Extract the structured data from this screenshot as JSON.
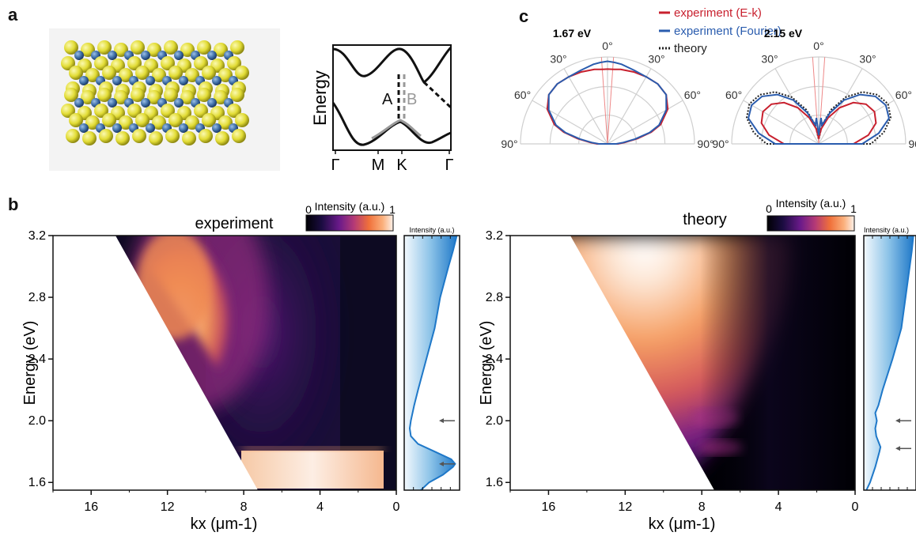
{
  "panel_labels": {
    "a": "a",
    "b": "b",
    "c": "c"
  },
  "colors": {
    "exp_ek": "#c8202e",
    "exp_fourier": "#2a5cae",
    "theory": "#222222",
    "sulfur": "#e6e23c",
    "metal": "#3f6fa8",
    "side_fill_light": "#eaf4fb",
    "side_fill_dark": "#1f78c8"
  },
  "band": {
    "ylabel": "Energy",
    "ticks": [
      "Γ",
      "M",
      "K",
      "Γ"
    ],
    "label_A": "A",
    "label_B": "B"
  },
  "polar": {
    "legend": [
      "experiment (E-k)",
      "experiment (Fourier)",
      "theory"
    ],
    "plots": [
      {
        "title": "1.67 eV",
        "show_theory": false,
        "ek": [
          [
            0,
            0.86
          ],
          [
            5,
            0.86
          ],
          [
            10,
            0.87
          ],
          [
            20,
            0.88
          ],
          [
            30,
            0.89
          ],
          [
            40,
            0.9
          ],
          [
            50,
            0.88
          ],
          [
            60,
            0.8
          ],
          [
            70,
            0.65
          ],
          [
            75,
            0.52
          ],
          [
            80,
            0.35
          ],
          [
            85,
            0.2
          ],
          [
            90,
            0.12
          ]
        ],
        "fourier": [
          [
            0,
            0.95
          ],
          [
            5,
            0.94
          ],
          [
            10,
            0.93
          ],
          [
            20,
            0.9
          ],
          [
            30,
            0.89
          ],
          [
            40,
            0.9
          ],
          [
            50,
            0.88
          ],
          [
            60,
            0.78
          ],
          [
            70,
            0.63
          ],
          [
            75,
            0.5
          ],
          [
            80,
            0.32
          ],
          [
            85,
            0.18
          ],
          [
            90,
            0.1
          ]
        ]
      },
      {
        "title": "2.15 eV",
        "show_theory": true,
        "ek": [
          [
            0,
            0.06
          ],
          [
            5,
            0.1
          ],
          [
            10,
            0.18
          ],
          [
            20,
            0.32
          ],
          [
            30,
            0.48
          ],
          [
            40,
            0.62
          ],
          [
            50,
            0.71
          ],
          [
            60,
            0.74
          ],
          [
            70,
            0.7
          ],
          [
            80,
            0.58
          ],
          [
            90,
            0.4
          ]
        ],
        "fourier": [
          [
            0,
            0.1
          ],
          [
            5,
            0.3
          ],
          [
            10,
            0.22
          ],
          [
            20,
            0.38
          ],
          [
            30,
            0.58
          ],
          [
            40,
            0.74
          ],
          [
            50,
            0.85
          ],
          [
            60,
            0.89
          ],
          [
            70,
            0.86
          ],
          [
            80,
            0.7
          ],
          [
            90,
            0.5
          ]
        ],
        "theory": [
          [
            0,
            0.05
          ],
          [
            10,
            0.22
          ],
          [
            20,
            0.42
          ],
          [
            30,
            0.62
          ],
          [
            40,
            0.78
          ],
          [
            50,
            0.88
          ],
          [
            60,
            0.92
          ],
          [
            70,
            0.88
          ],
          [
            80,
            0.76
          ],
          [
            90,
            0.6
          ]
        ]
      }
    ],
    "angle_ticks": [
      "0°",
      "30°",
      "30°",
      "60°",
      "60°",
      "90°",
      "90°"
    ]
  },
  "chart_data": [
    {
      "type": "heatmap",
      "title": "experiment",
      "xlabel": "kx (μm-1)",
      "ylabel": "Energy (eV)",
      "xlim": [
        18,
        0
      ],
      "ylim": [
        1.55,
        3.2
      ],
      "x_ticks": [
        "16",
        "12",
        "8",
        "4",
        "0"
      ],
      "y_ticks": [
        "1.6",
        "2.0",
        "2.4",
        "2.8",
        "3.2"
      ],
      "colorbar": {
        "label": "Intensity (a.u.)",
        "min_label": "0",
        "max_label": "1"
      },
      "side_profile": {
        "label": "Intensity (a.u.)",
        "energy": [
          1.55,
          1.6,
          1.65,
          1.7,
          1.72,
          1.75,
          1.8,
          1.85,
          1.9,
          1.95,
          2.0,
          2.1,
          2.2,
          2.4,
          2.6,
          2.8,
          3.0,
          3.1,
          3.2
        ],
        "intensity": [
          0.3,
          0.45,
          0.7,
          0.88,
          0.92,
          0.85,
          0.55,
          0.25,
          0.12,
          0.1,
          0.12,
          0.18,
          0.25,
          0.4,
          0.55,
          0.65,
          0.8,
          0.88,
          0.95
        ],
        "arrow_energies": [
          2.0,
          1.72
        ]
      }
    },
    {
      "type": "heatmap",
      "title": "theory",
      "xlabel": "kx (μm-1)",
      "ylabel": "Energy (eV)",
      "xlim": [
        18,
        0
      ],
      "ylim": [
        1.55,
        3.2
      ],
      "x_ticks": [
        "16",
        "12",
        "8",
        "4",
        "0"
      ],
      "y_ticks": [
        "1.6",
        "2.0",
        "2.4",
        "2.8",
        "3.2"
      ],
      "colorbar": {
        "label": "Intensity (a.u.)",
        "min_label": "0",
        "max_label": "1"
      },
      "side_profile": {
        "label": "Intensity (a.u.)",
        "energy": [
          1.55,
          1.6,
          1.7,
          1.8,
          1.83,
          1.9,
          1.95,
          2.0,
          2.05,
          2.1,
          2.2,
          2.4,
          2.6,
          2.8,
          3.0,
          3.1,
          3.2
        ],
        "intensity": [
          0.05,
          0.12,
          0.22,
          0.3,
          0.32,
          0.24,
          0.22,
          0.25,
          0.22,
          0.28,
          0.36,
          0.55,
          0.72,
          0.8,
          0.88,
          0.92,
          0.95
        ],
        "arrow_energies": [
          2.0,
          1.82
        ]
      }
    }
  ]
}
